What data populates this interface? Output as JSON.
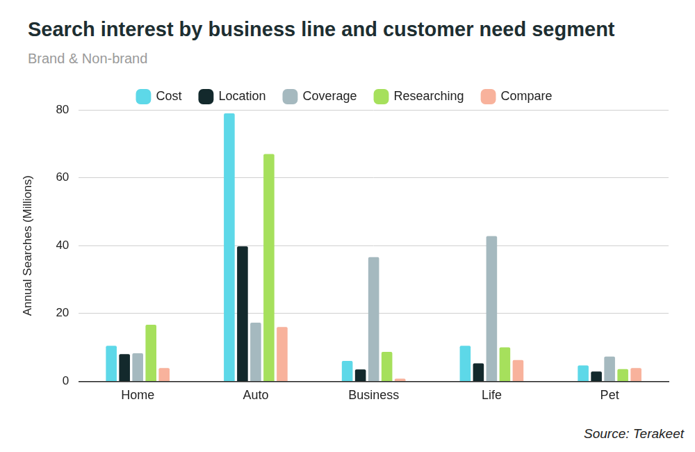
{
  "chart_data": {
    "type": "bar",
    "title": "Search interest by business line and customer need segment",
    "subtitle": "Brand & Non-brand",
    "y_label": "Annual Searches (Millions)",
    "annotations": [
      "Source: Terakeet"
    ],
    "categories": [
      "Home",
      "Auto",
      "Business",
      "Life",
      "Pet"
    ],
    "series": [
      {
        "name": "Cost",
        "color": "#5dd8e8",
        "values": [
          10.5,
          79,
          6,
          10.5,
          4.7
        ]
      },
      {
        "name": "Location",
        "color": "#13292c",
        "values": [
          8,
          39.8,
          3.5,
          5.3,
          2.9
        ]
      },
      {
        "name": "Coverage",
        "color": "#a5b9bf",
        "values": [
          8.3,
          17.3,
          36.6,
          42.8,
          7.3
        ]
      },
      {
        "name": "Researching",
        "color": "#a6e05c",
        "values": [
          16.7,
          67,
          8.7,
          10,
          3.6
        ]
      },
      {
        "name": "Compare",
        "color": "#f8b29c",
        "values": [
          3.9,
          16,
          0.8,
          6.3,
          3.9
        ]
      }
    ],
    "ylim": [
      0,
      80
    ],
    "yticks": [
      0,
      20,
      40,
      60,
      80
    ],
    "grid": true,
    "legend": "top"
  }
}
